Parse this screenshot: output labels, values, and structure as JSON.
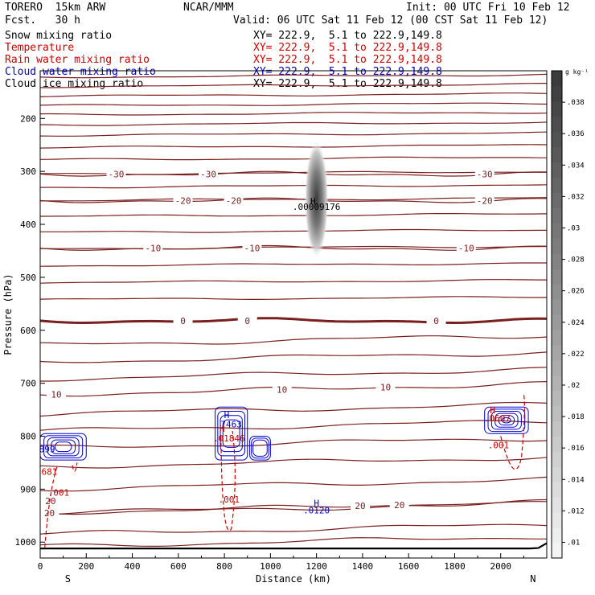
{
  "header": {
    "model": "TORERO  15km ARW",
    "center": "NCAR/MMM",
    "init": "Init: 00 UTC Fri 10 Feb 12",
    "fcst": "Fcst.   30 h",
    "valid": "Valid: 06 UTC Sat 11 Feb 12 (00 CST Sat 11 Feb 12)"
  },
  "fields": [
    {
      "name": "Snow mixing ratio",
      "xy": "XY= 222.9,  5.1 to 222.9,149.8",
      "color": "#000000"
    },
    {
      "name": "Temperature",
      "xy": "XY= 222.9,  5.1 to 222.9,149.8",
      "color": "#cc0000"
    },
    {
      "name": "Rain water mixing ratio",
      "xy": "XY= 222.9,  5.1 to 222.9,149.8",
      "color": "#cc0000"
    },
    {
      "name": "Cloud water mixing ratio",
      "xy": "XY= 222.9,  5.1 to 222.9,149.8",
      "color": "#0000cc"
    },
    {
      "name": "Cloud ice mixing ratio",
      "xy": "XY= 222.9,  5.1 to 222.9,149.8",
      "color": "#000000"
    }
  ],
  "chart_data": {
    "type": "contour",
    "xlabel": "Distance (km)",
    "ylabel": "Pressure (hPa)",
    "xlim": [
      0,
      2200
    ],
    "ylim": [
      1030,
      110
    ],
    "x_ticks": [
      0,
      200,
      400,
      600,
      800,
      1000,
      1200,
      1400,
      1600,
      1800,
      2000
    ],
    "y_ticks": [
      200,
      300,
      400,
      500,
      600,
      700,
      800,
      900,
      1000
    ],
    "x_ends": {
      "left": "S",
      "right": "N"
    },
    "colorbar": {
      "unit": "g kg⁻¹",
      "ticks": [
        ".01",
        ".012",
        ".014",
        ".016",
        ".018",
        ".02",
        ".022",
        ".024",
        ".026",
        ".028",
        ".03",
        ".032",
        ".034",
        ".036",
        ".038"
      ],
      "values": [
        0.01,
        0.012,
        0.014,
        0.016,
        0.018,
        0.02,
        0.022,
        0.024,
        0.026,
        0.028,
        0.03,
        0.032,
        0.034,
        0.036,
        0.038
      ]
    },
    "temperature_isotherms": [
      {
        "level": -30,
        "label": "-30",
        "label_x": [
          330,
          730,
          1930
        ]
      },
      {
        "level": -20,
        "label": "-20",
        "label_x": [
          620,
          840,
          1930
        ]
      },
      {
        "level": -10,
        "label": "-10",
        "label_x": [
          490,
          920,
          1850
        ]
      },
      {
        "level": 0,
        "label": "0",
        "label_x": [
          620,
          900,
          1720
        ]
      },
      {
        "level": 10,
        "label": "10",
        "label_x": [
          70,
          1050,
          1500
        ]
      },
      {
        "level": 20,
        "label": "20",
        "label_x": [
          40,
          1390,
          1560
        ]
      }
    ],
    "annotations": [
      {
        "text": "H",
        "x": 1185,
        "p": 362,
        "field": "snow"
      },
      {
        "text": ".00009176",
        "x": 1200,
        "p": 373,
        "field": "snow"
      },
      {
        "text": "H",
        "x": 810,
        "p": 766,
        "field": "cloud_water"
      },
      {
        "text": "7463",
        "x": 830,
        "p": 783,
        "field": "cloud_water"
      },
      {
        "text": "H",
        "x": 790,
        "p": 792,
        "field": "rain"
      },
      {
        "text": ".01846",
        "x": 820,
        "p": 810,
        "field": "rain"
      },
      {
        "text": "899",
        "x": 30,
        "p": 830,
        "field": "cloud_water"
      },
      {
        "text": "681",
        "x": 40,
        "p": 873,
        "field": "rain"
      },
      {
        "text": ".001",
        "x": 80,
        "p": 912,
        "field": "rain"
      },
      {
        "text": "20",
        "x": 45,
        "p": 928,
        "field": "temperature"
      },
      {
        "text": ".001",
        "x": 820,
        "p": 925,
        "field": "rain"
      },
      {
        "text": "H",
        "x": 1200,
        "p": 932,
        "field": "cloud_water"
      },
      {
        "text": ".0120",
        "x": 1200,
        "p": 946,
        "field": "cloud_water"
      },
      {
        "text": "H",
        "x": 1965,
        "p": 757,
        "field": "rain"
      },
      {
        "text": ".0607",
        "x": 1985,
        "p": 772,
        "field": "rain"
      },
      {
        "text": ".001",
        "x": 1990,
        "p": 823,
        "field": "rain"
      }
    ]
  }
}
